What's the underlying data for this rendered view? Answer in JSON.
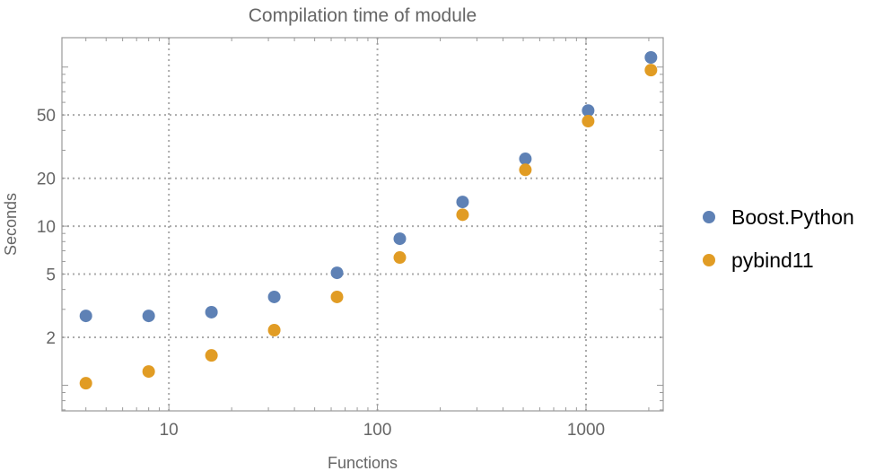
{
  "chart_data": {
    "type": "scatter",
    "title": "Compilation time of module",
    "xlabel": "Functions",
    "ylabel": "Seconds",
    "x_scale": "log",
    "y_scale": "log",
    "xlim": [
      3.07,
      2345
    ],
    "ylim": [
      0.69,
      153
    ],
    "grid": true,
    "legend_position": "right",
    "x_ticks": [
      10,
      100,
      1000
    ],
    "x_tick_labels": [
      "10",
      "100",
      "1000"
    ],
    "y_ticks": [
      2,
      5,
      10,
      20,
      50
    ],
    "y_tick_labels": [
      "2",
      "5",
      "10",
      "20",
      "50"
    ],
    "x": [
      4,
      8,
      16,
      32,
      64,
      128,
      256,
      512,
      1024,
      2048
    ],
    "series": [
      {
        "name": "Boost.Python",
        "color": "#5E81B5",
        "values": [
          2.73,
          2.73,
          2.88,
          3.59,
          5.09,
          8.34,
          14.2,
          26.5,
          53.3,
          115
        ]
      },
      {
        "name": "pybind11",
        "color": "#E19C24",
        "values": [
          1.03,
          1.22,
          1.54,
          2.22,
          3.59,
          6.35,
          11.8,
          22.6,
          45.7,
          95.7
        ]
      }
    ]
  }
}
